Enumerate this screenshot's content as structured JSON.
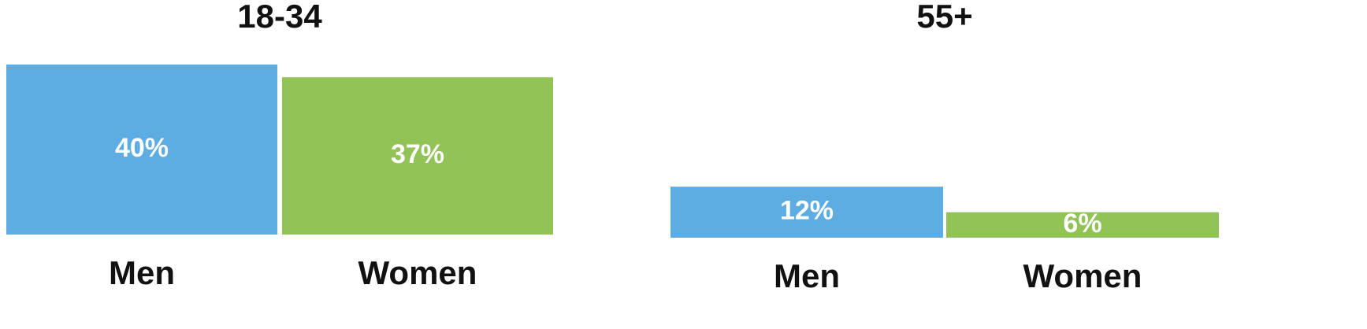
{
  "chart_data": [
    {
      "type": "bar",
      "title": "18-34",
      "categories": [
        "Men",
        "Women"
      ],
      "values": [
        40,
        37
      ],
      "value_labels": [
        "40%",
        "37%"
      ],
      "colors": [
        "#5DADE2",
        "#92C357"
      ],
      "ylim": [
        0,
        40
      ],
      "grid": false,
      "legend": "none"
    },
    {
      "type": "bar",
      "title": "55+",
      "categories": [
        "Men",
        "Women"
      ],
      "values": [
        12,
        6
      ],
      "value_labels": [
        "12%",
        "6%"
      ],
      "colors": [
        "#5DADE2",
        "#92C357"
      ],
      "ylim": [
        0,
        40
      ],
      "grid": false,
      "legend": "none"
    }
  ]
}
